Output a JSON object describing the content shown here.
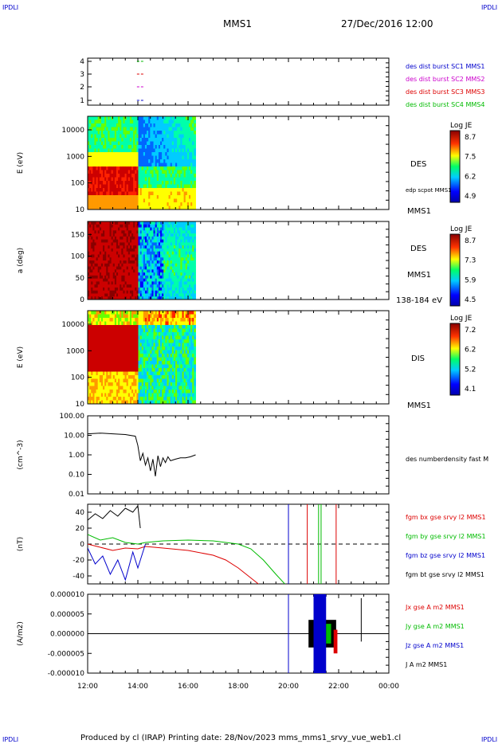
{
  "corner_marks": {
    "top_left": "IPDLI",
    "top_right": "IPDLI",
    "bottom_left": "IPDLI",
    "bottom_right": "IPDLI"
  },
  "header": {
    "spacecraft": "MMS1",
    "datetime": "27/Dec/2016 12:00"
  },
  "footer": {
    "text": "Produced by cl (IRAP)   Printing date: 28/Nov/2023   mms_mms1_srvy_vue_web1.cl"
  },
  "colors": {
    "blue": "#0000cc",
    "red": "#dd0000",
    "green": "#00bb00",
    "magenta": "#cc00cc",
    "black": "#000000"
  },
  "chart_data": [
    {
      "type": "scatter",
      "panel": "spacecraft-availability",
      "y_ticks": [
        "4",
        "3",
        "2",
        "1"
      ],
      "legend": [
        {
          "label": "des dist burst SC1 MMS1",
          "color": "#0000cc",
          "y": 1
        },
        {
          "label": "des dist burst SC2 MMS2",
          "color": "#cc00cc",
          "y": 2
        },
        {
          "label": "des dist burst SC3 MMS3",
          "color": "#dd0000",
          "y": 3
        },
        {
          "label": "des dist burst SC4 MMS4",
          "color": "#00bb00",
          "y": 4
        }
      ],
      "x_range_hours": [
        13.9,
        14.3
      ]
    },
    {
      "type": "heatmap",
      "panel": "des-energy",
      "ylabel": "E (eV)",
      "yscale": "log",
      "y_ticks": [
        "10000",
        "1000",
        "100",
        "10"
      ],
      "right_labels": [
        "DES",
        "edp scpot MMS1",
        "MMS1"
      ],
      "colorbar": {
        "title": "Log JE",
        "ticks": [
          "8.7",
          "7.5",
          "6.2",
          "4.9"
        ]
      },
      "x_range_hours": [
        12.0,
        16.3
      ]
    },
    {
      "type": "heatmap",
      "panel": "des-pitch-angle",
      "ylabel": "a (deg)",
      "y_ticks": [
        "150",
        "100",
        "50",
        "0"
      ],
      "right_labels": [
        "DES",
        "MMS1",
        "138-184 eV"
      ],
      "colorbar": {
        "title": "Log JE",
        "ticks": [
          "8.7",
          "7.3",
          "5.9",
          "4.5"
        ]
      },
      "x_range_hours": [
        12.0,
        16.3
      ]
    },
    {
      "type": "heatmap",
      "panel": "dis-energy",
      "ylabel": "E (eV)",
      "yscale": "log",
      "y_ticks": [
        "10000",
        "1000",
        "100",
        "10"
      ],
      "right_labels": [
        "DIS",
        "MMS1"
      ],
      "colorbar": {
        "title": "Log JE",
        "ticks": [
          "7.2",
          "6.2",
          "5.2",
          "4.1"
        ]
      },
      "x_range_hours": [
        12.0,
        16.3
      ]
    },
    {
      "type": "line",
      "panel": "des-density",
      "ylabel": "(cm^-3)",
      "yscale": "log",
      "y_ticks": [
        "100.00",
        "10.00",
        "1.00",
        "0.10",
        "0.01"
      ],
      "ylim": [
        0.01,
        100
      ],
      "series": [
        {
          "name": "des numberdensity fast M",
          "color": "#000000",
          "x": [
            12.0,
            12.5,
            13.0,
            13.5,
            13.9,
            14.0,
            14.1,
            14.2,
            14.3,
            14.4,
            14.5,
            14.6,
            14.7,
            14.8,
            14.9,
            15.0,
            15.1,
            15.2,
            15.3,
            15.5,
            15.7,
            15.9,
            16.1,
            16.3
          ],
          "y": [
            12,
            13,
            12,
            11,
            9,
            3,
            0.5,
            1.2,
            0.3,
            0.7,
            0.15,
            0.6,
            0.08,
            0.9,
            0.25,
            0.7,
            0.4,
            0.8,
            0.5,
            0.6,
            0.7,
            0.7,
            0.8,
            1.0
          ]
        }
      ]
    },
    {
      "type": "line",
      "panel": "fgm-b-field",
      "ylabel": "(nT)",
      "y_ticks": [
        "40",
        "20",
        "0",
        "-20",
        "-40"
      ],
      "ylim": [
        -50,
        50
      ],
      "series": [
        {
          "name": "fgm bx gse srvy l2 MMS1",
          "color": "#dd0000",
          "x": [
            12.0,
            12.5,
            13.0,
            13.5,
            14.0,
            14.3,
            15.0,
            16.0,
            17.0,
            17.5,
            18.0,
            18.6,
            19.0
          ],
          "y": [
            0,
            -4,
            -8,
            -5,
            -6,
            -3,
            -5,
            -8,
            -14,
            -20,
            -30,
            -45,
            -55
          ]
        },
        {
          "name": "fgm by gse srvy l2 MMS1",
          "color": "#00bb00",
          "x": [
            12.0,
            12.5,
            13.0,
            13.5,
            14.0,
            14.3,
            15.0,
            16.0,
            17.0,
            17.5,
            18.0,
            18.5,
            19.0,
            19.5,
            20.0
          ],
          "y": [
            12,
            5,
            8,
            2,
            0,
            2,
            4,
            5,
            4,
            2,
            0,
            -6,
            -20,
            -38,
            -55
          ]
        },
        {
          "name": "fgm bz gse srvy l2 MMS1",
          "color": "#0000cc",
          "x": [
            12.0,
            12.3,
            12.6,
            12.9,
            13.2,
            13.5,
            13.8,
            14.0,
            14.3
          ],
          "y": [
            -5,
            -25,
            -15,
            -38,
            -20,
            -45,
            -10,
            -30,
            0
          ]
        },
        {
          "name": "fgm bt gse srvy l2 MMS1",
          "color": "#000000",
          "x": [
            12.0,
            12.3,
            12.6,
            12.9,
            13.2,
            13.5,
            13.8,
            14.0,
            14.1
          ],
          "y": [
            30,
            38,
            32,
            42,
            35,
            45,
            40,
            48,
            20
          ]
        }
      ],
      "vertical_markers": [
        {
          "x": 20.0,
          "color": "#0000cc"
        },
        {
          "x": 20.75,
          "color": "#dd0000"
        },
        {
          "x": 21.2,
          "color": "#00bb00"
        },
        {
          "x": 21.3,
          "color": "#00bb00"
        },
        {
          "x": 21.9,
          "color": "#dd0000"
        }
      ]
    },
    {
      "type": "line",
      "panel": "fpi-current",
      "ylabel": "(A/m2)",
      "y_ticks": [
        "0.000010",
        "0.000005",
        "0.000000",
        "-0.000005",
        "-0.000010"
      ],
      "ylim": [
        -1e-05,
        1e-05
      ],
      "series": [
        {
          "name": "Jx gse A m2 MMS1",
          "color": "#dd0000"
        },
        {
          "name": "Jy gse A m2 MMS1",
          "color": "#00bb00"
        },
        {
          "name": "Jz gse A m2 MMS1",
          "color": "#0000cc"
        },
        {
          "name": "J A m2 MMS1",
          "color": "#000000"
        }
      ],
      "vertical_markers": [
        {
          "x": 20.0,
          "color": "#0000cc"
        }
      ],
      "x_ticks": [
        "12:00",
        "14:00",
        "16:00",
        "18:00",
        "20:00",
        "22:00",
        "00:00"
      ],
      "x_range_hours": [
        12,
        24
      ]
    }
  ]
}
